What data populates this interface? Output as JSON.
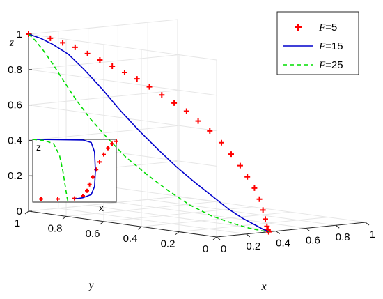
{
  "chart_data": {
    "type": "line",
    "dimensions": 3,
    "xlabel": "x",
    "ylabel": "y",
    "zlabel": "z",
    "xlim": [
      0,
      1
    ],
    "ylim": [
      0,
      1
    ],
    "zlim": [
      0,
      1
    ],
    "x_ticks": [
      "0",
      "0.2",
      "0.4",
      "0.6",
      "0.8",
      "1"
    ],
    "y_ticks": [
      "0",
      "0.2",
      "0.4",
      "0.6",
      "0.8",
      "1"
    ],
    "z_ticks": [
      "0",
      "0.2",
      "0.4",
      "0.6",
      "0.8",
      "1"
    ],
    "grid": true,
    "legend_position": "top-right",
    "series": [
      {
        "name_prefix": "F",
        "name_value": "=5",
        "style": "plus-markers",
        "color": "#ff0000",
        "points": [
          [
            0,
            1,
            1.0
          ],
          [
            0.02,
            0.9,
            0.99
          ],
          [
            0.04,
            0.85,
            0.97
          ],
          [
            0.06,
            0.8,
            0.95
          ],
          [
            0.08,
            0.75,
            0.92
          ],
          [
            0.1,
            0.7,
            0.89
          ],
          [
            0.12,
            0.65,
            0.86
          ],
          [
            0.14,
            0.6,
            0.83
          ],
          [
            0.16,
            0.55,
            0.8
          ],
          [
            0.18,
            0.5,
            0.76
          ],
          [
            0.2,
            0.45,
            0.72
          ],
          [
            0.22,
            0.4,
            0.68
          ],
          [
            0.24,
            0.35,
            0.64
          ],
          [
            0.255,
            0.3,
            0.59
          ],
          [
            0.27,
            0.25,
            0.54
          ],
          [
            0.285,
            0.2,
            0.48
          ],
          [
            0.3,
            0.16,
            0.42
          ],
          [
            0.31,
            0.12,
            0.36
          ],
          [
            0.32,
            0.09,
            0.3
          ],
          [
            0.33,
            0.06,
            0.24
          ],
          [
            0.338,
            0.04,
            0.18
          ],
          [
            0.343,
            0.025,
            0.12
          ],
          [
            0.346,
            0.015,
            0.07
          ],
          [
            0.348,
            0.008,
            0.03
          ],
          [
            0.35,
            0.004,
            0.01
          ],
          [
            0.35,
            0,
            0
          ]
        ]
      },
      {
        "name_prefix": "F",
        "name_value": "=15",
        "style": "solid",
        "color": "#0000cc",
        "points": [
          [
            0,
            1,
            1.0
          ],
          [
            0.03,
            0.96,
            0.98
          ],
          [
            0.06,
            0.92,
            0.95
          ],
          [
            0.09,
            0.86,
            0.9
          ],
          [
            0.12,
            0.8,
            0.82
          ],
          [
            0.15,
            0.73,
            0.72
          ],
          [
            0.18,
            0.66,
            0.61
          ],
          [
            0.21,
            0.58,
            0.5
          ],
          [
            0.24,
            0.5,
            0.4
          ],
          [
            0.265,
            0.42,
            0.31
          ],
          [
            0.29,
            0.34,
            0.23
          ],
          [
            0.31,
            0.26,
            0.16
          ],
          [
            0.325,
            0.19,
            0.1
          ],
          [
            0.337,
            0.13,
            0.06
          ],
          [
            0.345,
            0.07,
            0.03
          ],
          [
            0.35,
            0.03,
            0.01
          ],
          [
            0.35,
            0,
            0
          ]
        ]
      },
      {
        "name_prefix": "F",
        "name_value": "=25",
        "style": "dashed",
        "color": "#00dd00",
        "points": [
          [
            0,
            1,
            1.0
          ],
          [
            0.015,
            0.98,
            0.97
          ],
          [
            0.03,
            0.95,
            0.92
          ],
          [
            0.05,
            0.91,
            0.84
          ],
          [
            0.07,
            0.87,
            0.75
          ],
          [
            0.09,
            0.82,
            0.65
          ],
          [
            0.11,
            0.76,
            0.55
          ],
          [
            0.135,
            0.69,
            0.45
          ],
          [
            0.16,
            0.61,
            0.35
          ],
          [
            0.19,
            0.52,
            0.26
          ],
          [
            0.22,
            0.43,
            0.18
          ],
          [
            0.25,
            0.34,
            0.11
          ],
          [
            0.28,
            0.25,
            0.06
          ],
          [
            0.305,
            0.16,
            0.03
          ],
          [
            0.325,
            0.08,
            0.01
          ],
          [
            0.34,
            0.03,
            0.003
          ],
          [
            0.35,
            0,
            0
          ]
        ]
      }
    ],
    "inset": {
      "xlabel": "x",
      "zlabel": "z",
      "series": [
        {
          "name_prefix": "F",
          "name_value": "=5",
          "color": "#ff0000",
          "style": "plus-markers",
          "points": [
            [
              0.1,
              0.05
            ],
            [
              0.3,
              0.05
            ],
            [
              0.5,
              0.06
            ],
            [
              0.6,
              0.1
            ],
            [
              0.65,
              0.18
            ],
            [
              0.68,
              0.28
            ],
            [
              0.72,
              0.4
            ],
            [
              0.76,
              0.52
            ],
            [
              0.8,
              0.64
            ],
            [
              0.85,
              0.76
            ],
            [
              0.9,
              0.86
            ],
            [
              0.95,
              0.93
            ],
            [
              1.0,
              0.97
            ]
          ]
        },
        {
          "name_prefix": "F",
          "name_value": "=15",
          "color": "#0000cc",
          "style": "solid",
          "points": [
            [
              0.0,
              1.0
            ],
            [
              0.6,
              0.99
            ],
            [
              0.7,
              0.95
            ],
            [
              0.74,
              0.8
            ],
            [
              0.75,
              0.5
            ],
            [
              0.74,
              0.25
            ],
            [
              0.7,
              0.12
            ],
            [
              0.6,
              0.07
            ],
            [
              0.5,
              0.05
            ]
          ]
        },
        {
          "name_prefix": "F",
          "name_value": "=25",
          "color": "#00dd00",
          "style": "dashed",
          "points": [
            [
              0.0,
              1.0
            ],
            [
              0.15,
              0.98
            ],
            [
              0.25,
              0.93
            ],
            [
              0.32,
              0.75
            ],
            [
              0.36,
              0.5
            ],
            [
              0.39,
              0.25
            ],
            [
              0.41,
              0.08
            ],
            [
              0.42,
              0.02
            ]
          ]
        }
      ]
    }
  }
}
